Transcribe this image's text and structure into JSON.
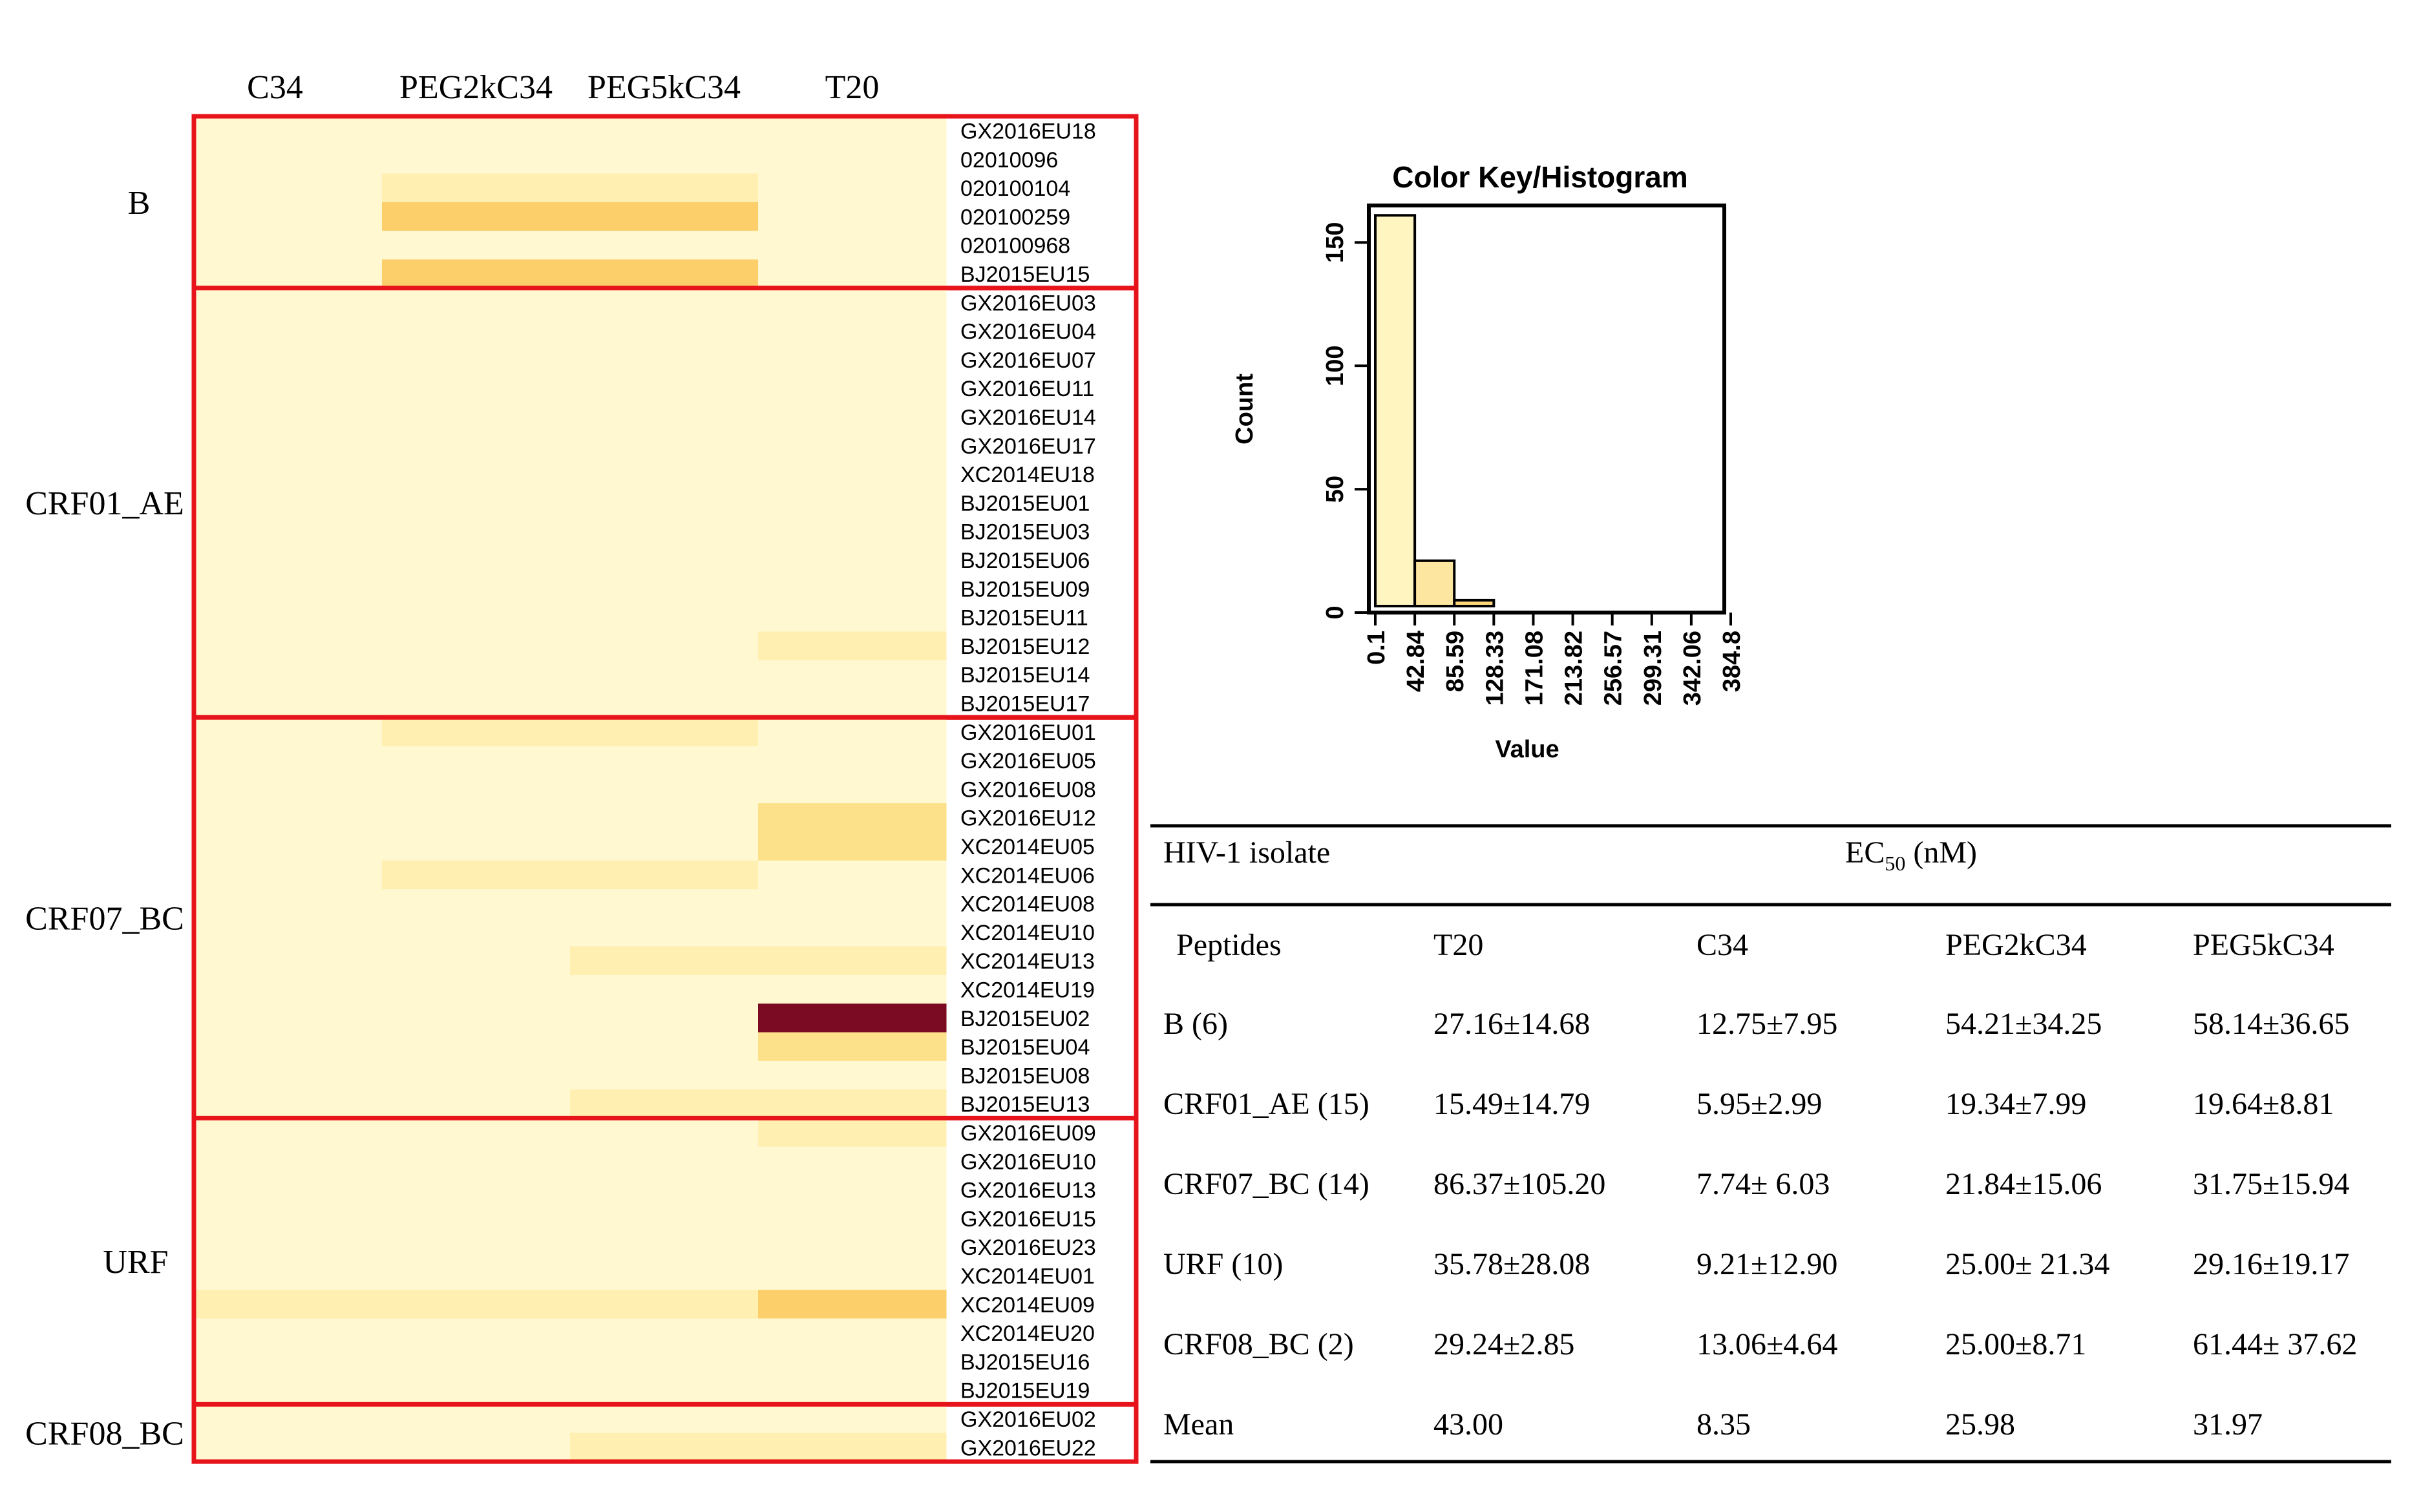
{
  "chart_data": [
    {
      "type": "heatmap",
      "columns": [
        "C34",
        "PEG2kC34",
        "PEG5kC34",
        "T20"
      ],
      "groups": [
        {
          "name": "B",
          "rows": [
            {
              "label": "GX2016EU18",
              "values": [
                5,
                10,
                10,
                8
              ]
            },
            {
              "label": "02010096",
              "values": [
                5,
                12,
                12,
                10
              ]
            },
            {
              "label": "020100104",
              "values": [
                6,
                48,
                48,
                40
              ]
            },
            {
              "label": "020100259",
              "values": [
                8,
                110,
                110,
                12
              ]
            },
            {
              "label": "020100968",
              "values": [
                8,
                20,
                20,
                10
              ]
            },
            {
              "label": "BJ2015EU15",
              "values": [
                8,
                105,
                105,
                10
              ]
            }
          ]
        },
        {
          "name": "CRF01_AE",
          "rows": [
            {
              "label": "GX2016EU03",
              "values": [
                5,
                18,
                18,
                10
              ]
            },
            {
              "label": "GX2016EU04",
              "values": [
                5,
                18,
                18,
                10
              ]
            },
            {
              "label": "GX2016EU07",
              "values": [
                5,
                18,
                18,
                10
              ]
            },
            {
              "label": "GX2016EU11",
              "values": [
                5,
                18,
                18,
                10
              ]
            },
            {
              "label": "GX2016EU14",
              "values": [
                5,
                18,
                18,
                10
              ]
            },
            {
              "label": "GX2016EU17",
              "values": [
                5,
                18,
                18,
                10
              ]
            },
            {
              "label": "XC2014EU18",
              "values": [
                5,
                18,
                18,
                10
              ]
            },
            {
              "label": "BJ2015EU01",
              "values": [
                5,
                18,
                18,
                10
              ]
            },
            {
              "label": "BJ2015EU03",
              "values": [
                5,
                18,
                18,
                10
              ]
            },
            {
              "label": "BJ2015EU06",
              "values": [
                5,
                18,
                18,
                10
              ]
            },
            {
              "label": "BJ2015EU09",
              "values": [
                5,
                18,
                18,
                10
              ]
            },
            {
              "label": "BJ2015EU11",
              "values": [
                5,
                18,
                18,
                10
              ]
            },
            {
              "label": "BJ2015EU12",
              "values": [
                5,
                18,
                18,
                48
              ]
            },
            {
              "label": "BJ2015EU14",
              "values": [
                5,
                18,
                18,
                10
              ]
            },
            {
              "label": "BJ2015EU17",
              "values": [
                5,
                18,
                18,
                10
              ]
            }
          ]
        },
        {
          "name": "CRF07_BC",
          "rows": [
            {
              "label": "GX2016EU01",
              "values": [
                5,
                45,
                45,
                10
              ]
            },
            {
              "label": "GX2016EU05",
              "values": [
                5,
                15,
                15,
                10
              ]
            },
            {
              "label": "GX2016EU08",
              "values": [
                5,
                15,
                15,
                10
              ]
            },
            {
              "label": "GX2016EU12",
              "values": [
                5,
                15,
                15,
                55
              ]
            },
            {
              "label": "XC2014EU05",
              "values": [
                5,
                15,
                15,
                55
              ]
            },
            {
              "label": "XC2014EU06",
              "values": [
                5,
                45,
                45,
                10
              ]
            },
            {
              "label": "XC2014EU08",
              "values": [
                5,
                15,
                15,
                10
              ]
            },
            {
              "label": "XC2014EU10",
              "values": [
                5,
                15,
                15,
                10
              ]
            },
            {
              "label": "XC2014EU13",
              "values": [
                5,
                15,
                45,
                45
              ]
            },
            {
              "label": "XC2014EU19",
              "values": [
                5,
                15,
                15,
                10
              ]
            },
            {
              "label": "BJ2015EU02",
              "values": [
                5,
                15,
                15,
                384.8
              ]
            },
            {
              "label": "BJ2015EU04",
              "values": [
                5,
                15,
                15,
                55
              ]
            },
            {
              "label": "BJ2015EU08",
              "values": [
                5,
                15,
                15,
                10
              ]
            },
            {
              "label": "BJ2015EU13",
              "values": [
                5,
                15,
                45,
                45
              ]
            }
          ]
        },
        {
          "name": "URF",
          "rows": [
            {
              "label": "GX2016EU09",
              "values": [
                5,
                15,
                15,
                50
              ]
            },
            {
              "label": "GX2016EU10",
              "values": [
                5,
                15,
                15,
                10
              ]
            },
            {
              "label": "GX2016EU13",
              "values": [
                5,
                15,
                15,
                10
              ]
            },
            {
              "label": "GX2016EU15",
              "values": [
                5,
                15,
                15,
                10
              ]
            },
            {
              "label": "GX2016EU23",
              "values": [
                5,
                15,
                15,
                10
              ]
            },
            {
              "label": "XC2014EU01",
              "values": [
                5,
                15,
                15,
                10
              ]
            },
            {
              "label": "XC2014EU09",
              "values": [
                45,
                45,
                45,
                95
              ]
            },
            {
              "label": "XC2014EU20",
              "values": [
                5,
                15,
                15,
                10
              ]
            },
            {
              "label": "BJ2015EU16",
              "values": [
                5,
                15,
                15,
                10
              ]
            },
            {
              "label": "BJ2015EU19",
              "values": [
                5,
                15,
                15,
                10
              ]
            }
          ]
        },
        {
          "name": "CRF08_BC",
          "rows": [
            {
              "label": "GX2016EU02",
              "values": [
                5,
                15,
                15,
                10
              ]
            },
            {
              "label": "GX2016EU22",
              "values": [
                5,
                15,
                45,
                45
              ]
            }
          ]
        }
      ],
      "color_scale": [
        "#fff8d0",
        "#ffefb0",
        "#fde08a",
        "#fccf6a",
        "#7a0b22"
      ],
      "color_breaks": [
        0.1,
        42.84,
        85.59,
        128.33,
        384.8
      ],
      "outline_color": "#e8141c"
    },
    {
      "type": "bar",
      "title": "Color Key/Histogram",
      "xlabel": "Value",
      "ylabel": "Count",
      "ylim": [
        0,
        165
      ],
      "yticks": [
        0,
        50,
        100,
        150
      ],
      "x_tick_labels": [
        "0.1",
        "42.84",
        "85.59",
        "128.33",
        "171.08",
        "213.82",
        "256.57",
        "299.31",
        "342.06",
        "384.8"
      ],
      "bins": [
        [
          0.1,
          42.84
        ],
        [
          42.84,
          85.59
        ],
        [
          85.59,
          128.33
        ],
        [
          128.33,
          171.08
        ],
        [
          171.08,
          213.82
        ],
        [
          213.82,
          256.57
        ],
        [
          256.57,
          299.31
        ],
        [
          299.31,
          342.06
        ],
        [
          342.06,
          384.8
        ]
      ],
      "counts": [
        161,
        21,
        5,
        0,
        0,
        0,
        0,
        0,
        1
      ],
      "bar_colors": [
        "#fff5c0",
        "#fde7a0",
        "#fcd67a",
        "#f9c060",
        "#f0a050",
        "#d87040",
        "#b03030",
        "#902028",
        "#7a0b22"
      ]
    },
    {
      "type": "table",
      "header_left": "HIV-1 isolate",
      "header_right_main": "EC",
      "header_right_sub": "50",
      "header_right_unit": " (nM)",
      "columns": [
        "Peptides",
        "T20",
        "C34",
        "PEG2kC34",
        "PEG5kC34"
      ],
      "rows": [
        [
          "B (6)",
          "27.16±14.68",
          "12.75±7.95",
          "54.21±34.25",
          "58.14±36.65"
        ],
        [
          "CRF01_AE (15)",
          "15.49±14.79",
          "5.95±2.99",
          "19.34±7.99",
          "19.64±8.81"
        ],
        [
          "CRF07_BC (14)",
          "86.37±105.20",
          "7.74± 6.03",
          "21.84±15.06",
          "31.75±15.94"
        ],
        [
          "URF (10)",
          "35.78±28.08",
          "9.21±12.90",
          "25.00± 21.34",
          "29.16±19.17"
        ],
        [
          "CRF08_BC (2)",
          "29.24±2.85",
          "13.06±4.64",
          "25.00±8.71",
          "61.44± 37.62"
        ],
        [
          "Mean",
          "43.00",
          "8.35",
          "25.98",
          "31.97"
        ]
      ]
    }
  ]
}
